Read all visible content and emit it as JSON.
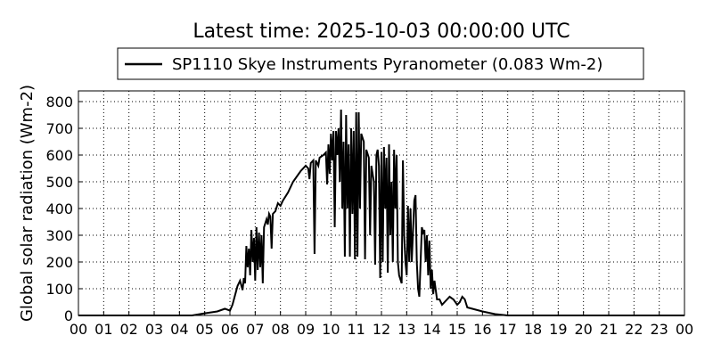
{
  "chart_data": {
    "type": "line",
    "title": "Latest time: 2025-10-03 00:00:00 UTC",
    "y_label": "Global solar radiation (Wm-2)",
    "xlim": [
      0,
      24
    ],
    "ylim": [
      0,
      840
    ],
    "xticks": [
      {
        "value": 0,
        "label": "00"
      },
      {
        "value": 1,
        "label": "01"
      },
      {
        "value": 2,
        "label": "02"
      },
      {
        "value": 3,
        "label": "03"
      },
      {
        "value": 4,
        "label": "04"
      },
      {
        "value": 5,
        "label": "05"
      },
      {
        "value": 6,
        "label": "06"
      },
      {
        "value": 7,
        "label": "07"
      },
      {
        "value": 8,
        "label": "08"
      },
      {
        "value": 9,
        "label": "09"
      },
      {
        "value": 10,
        "label": "10"
      },
      {
        "value": 11,
        "label": "11"
      },
      {
        "value": 12,
        "label": "12"
      },
      {
        "value": 13,
        "label": "13"
      },
      {
        "value": 14,
        "label": "14"
      },
      {
        "value": 15,
        "label": "15"
      },
      {
        "value": 16,
        "label": "16"
      },
      {
        "value": 17,
        "label": "17"
      },
      {
        "value": 18,
        "label": "18"
      },
      {
        "value": 19,
        "label": "19"
      },
      {
        "value": 20,
        "label": "20"
      },
      {
        "value": 21,
        "label": "21"
      },
      {
        "value": 22,
        "label": "22"
      },
      {
        "value": 23,
        "label": "23"
      },
      {
        "value": 24,
        "label": "00"
      }
    ],
    "yticks": [
      0,
      100,
      200,
      300,
      400,
      500,
      600,
      700,
      800
    ],
    "grid": true,
    "legend": "top",
    "x": [
      0,
      4.5,
      5.0,
      5.5,
      5.8,
      6.0,
      6.1,
      6.3,
      6.4,
      6.5,
      6.55,
      6.6,
      6.65,
      6.7,
      6.75,
      6.8,
      6.85,
      6.9,
      6.95,
      7.0,
      7.05,
      7.1,
      7.15,
      7.2,
      7.25,
      7.3,
      7.35,
      7.45,
      7.5,
      7.55,
      7.6,
      7.65,
      7.7,
      7.8,
      7.9,
      8.0,
      8.1,
      8.3,
      8.5,
      8.8,
      9.0,
      9.1,
      9.15,
      9.2,
      9.3,
      9.35,
      9.4,
      9.5,
      9.55,
      9.7,
      9.8,
      9.85,
      9.9,
      9.95,
      10.0,
      10.05,
      10.1,
      10.15,
      10.2,
      10.25,
      10.3,
      10.35,
      10.4,
      10.45,
      10.5,
      10.55,
      10.6,
      10.65,
      10.7,
      10.75,
      10.8,
      10.85,
      10.9,
      10.95,
      11.0,
      11.05,
      11.1,
      11.15,
      11.2,
      11.3,
      11.35,
      11.4,
      11.5,
      11.55,
      11.6,
      11.7,
      11.75,
      11.8,
      11.85,
      11.9,
      11.95,
      12.0,
      12.05,
      12.1,
      12.15,
      12.2,
      12.25,
      12.3,
      12.35,
      12.4,
      12.45,
      12.5,
      12.55,
      12.6,
      12.65,
      12.7,
      12.8,
      12.85,
      12.9,
      12.95,
      13.0,
      13.05,
      13.1,
      13.15,
      13.2,
      13.3,
      13.35,
      13.4,
      13.45,
      13.5,
      13.55,
      13.6,
      13.65,
      13.7,
      13.75,
      13.8,
      13.85,
      13.9,
      13.95,
      14.0,
      14.05,
      14.1,
      14.2,
      14.3,
      14.4,
      14.5,
      14.7,
      14.85,
      15.0,
      15.1,
      15.2,
      15.3,
      15.4,
      15.6,
      16.0,
      16.5,
      17.0,
      24
    ],
    "series": [
      {
        "name": "SP1110 Skye Instruments Pyranometer (0.083 Wm-2)",
        "color": "#000000",
        "values": [
          0,
          0,
          8,
          15,
          25,
          18,
          40,
          110,
          130,
          95,
          140,
          120,
          260,
          180,
          250,
          150,
          320,
          200,
          290,
          130,
          330,
          170,
          310,
          180,
          300,
          120,
          330,
          360,
          340,
          380,
          370,
          250,
          380,
          390,
          420,
          410,
          430,
          460,
          500,
          540,
          560,
          550,
          510,
          570,
          580,
          230,
          580,
          560,
          590,
          600,
          610,
          490,
          640,
          530,
          680,
          580,
          690,
          330,
          690,
          600,
          700,
          500,
          770,
          400,
          650,
          220,
          750,
          400,
          640,
          220,
          700,
          380,
          690,
          210,
          760,
          220,
          760,
          400,
          680,
          650,
          210,
          620,
          590,
          300,
          560,
          500,
          190,
          600,
          620,
          560,
          140,
          610,
          200,
          630,
          400,
          590,
          160,
          640,
          300,
          500,
          200,
          620,
          400,
          600,
          200,
          150,
          120,
          580,
          300,
          200,
          150,
          410,
          200,
          400,
          200,
          430,
          450,
          200,
          100,
          70,
          200,
          330,
          310,
          320,
          200,
          300,
          150,
          280,
          100,
          170,
          80,
          130,
          60,
          60,
          40,
          50,
          70,
          60,
          40,
          50,
          70,
          60,
          30,
          25,
          15,
          5,
          0,
          0
        ]
      }
    ]
  }
}
